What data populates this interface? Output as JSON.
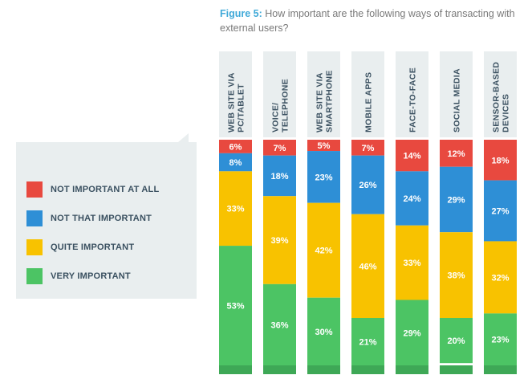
{
  "title": {
    "label": "Figure 5:",
    "text": "How important are the following ways of transacting with external users?"
  },
  "legend": [
    {
      "name": "NOT IMPORTANT AT ALL",
      "color": "#e8493f"
    },
    {
      "name": "NOT THAT IMPORTANT",
      "color": "#2e8fd6"
    },
    {
      "name": "QUITE IMPORTANT",
      "color": "#f8c200"
    },
    {
      "name": "VERY IMPORTANT",
      "color": "#4cc464"
    }
  ],
  "chart_data": {
    "type": "bar",
    "stacked": true,
    "percent": true,
    "legend_position": "left",
    "categories": [
      [
        "WEB SITE VIA",
        "PC/TABLET"
      ],
      [
        "VOICE/",
        "TELEPHONE"
      ],
      [
        "WEB SITE VIA",
        "SMARTPHONE"
      ],
      [
        "MOBILE APPS"
      ],
      [
        "FACE-TO-FACE"
      ],
      [
        "SOCIAL MEDIA"
      ],
      [
        "SENSOR-BASED",
        "DEVICES"
      ]
    ],
    "series": [
      {
        "name": "NOT IMPORTANT AT ALL",
        "color": "#e8493f",
        "values": [
          6,
          7,
          5,
          7,
          14,
          12,
          18
        ]
      },
      {
        "name": "NOT THAT IMPORTANT",
        "color": "#2e8fd6",
        "values": [
          8,
          18,
          23,
          26,
          24,
          29,
          27
        ]
      },
      {
        "name": "QUITE IMPORTANT",
        "color": "#f8c200",
        "values": [
          33,
          39,
          42,
          46,
          33,
          38,
          32
        ]
      },
      {
        "name": "VERY IMPORTANT",
        "color": "#4cc464",
        "values": [
          53,
          36,
          30,
          21,
          29,
          20,
          23
        ]
      }
    ],
    "value_suffix": "%",
    "ylim": [
      0,
      100
    ]
  }
}
